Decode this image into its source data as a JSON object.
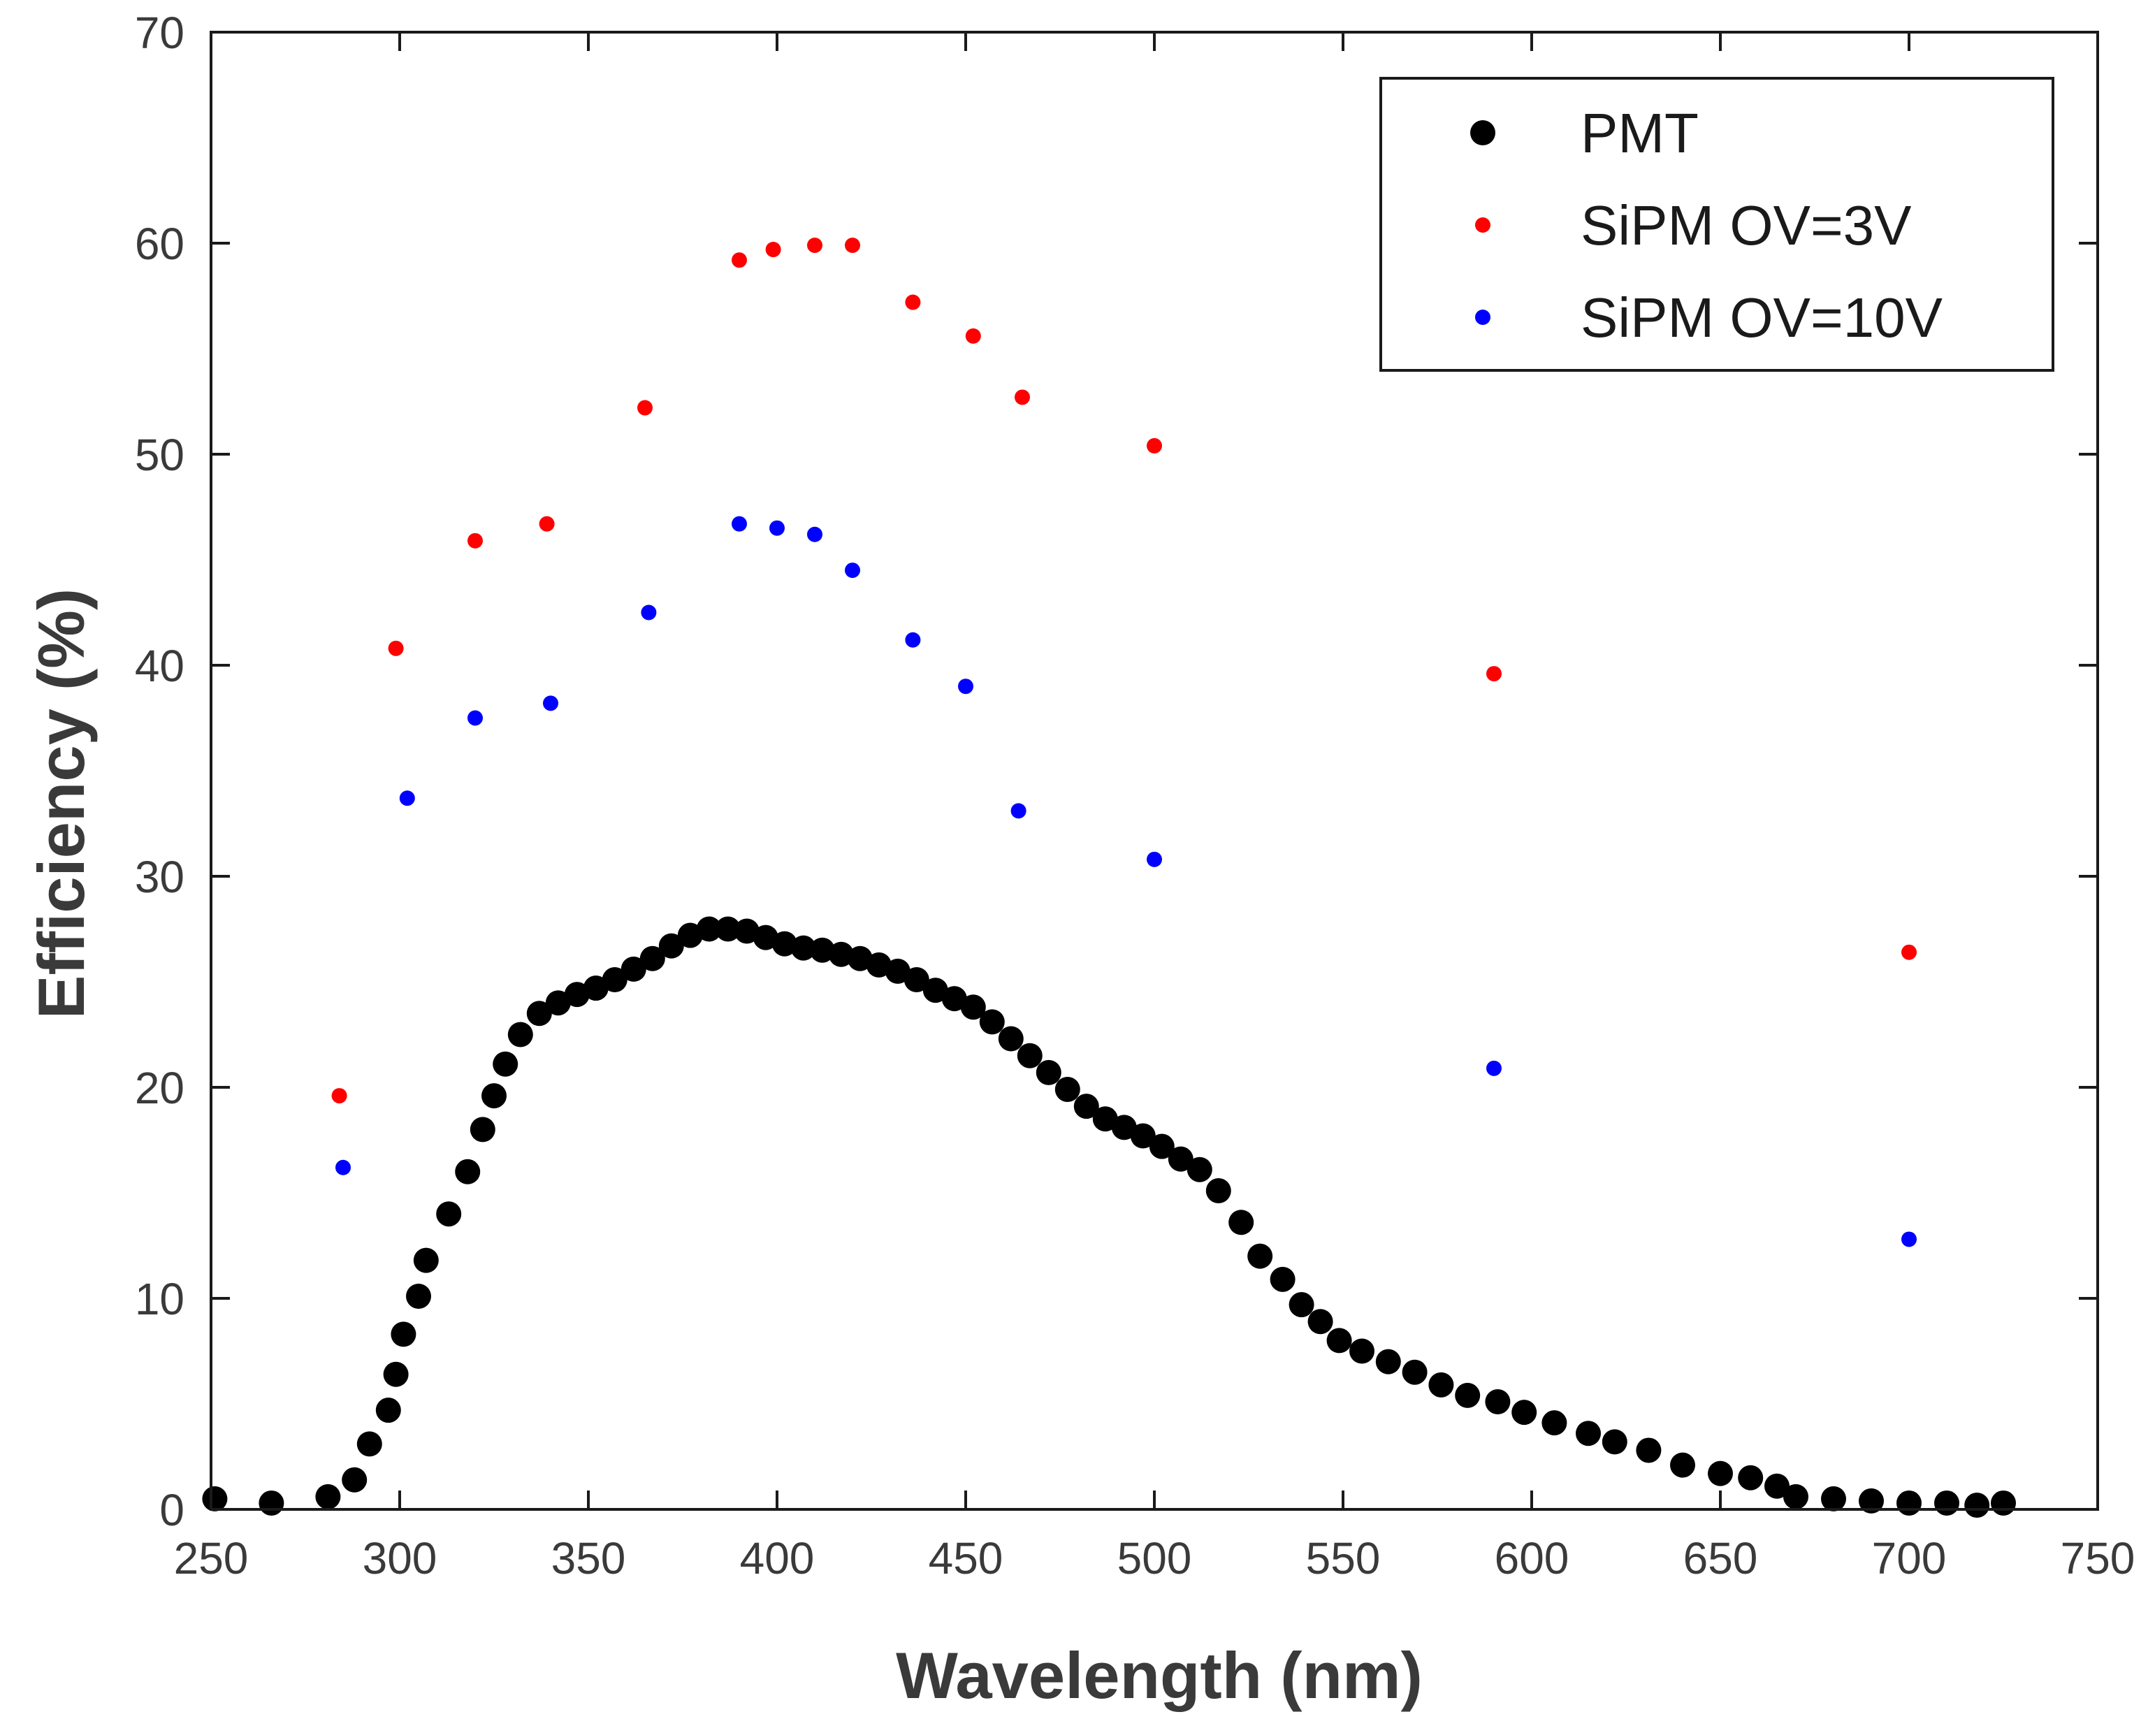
{
  "chart_data": {
    "type": "scatter",
    "title": "",
    "xlabel": "Wavelength (nm)",
    "ylabel": "Efficiency (%)",
    "xlim": [
      250,
      750
    ],
    "ylim": [
      0,
      70
    ],
    "xticks": [
      250,
      300,
      350,
      400,
      450,
      500,
      550,
      600,
      650,
      700,
      750
    ],
    "yticks": [
      0,
      10,
      20,
      30,
      40,
      50,
      60,
      70
    ],
    "xtick_labels": [
      "250",
      "300",
      "350",
      "400",
      "450",
      "500",
      "550",
      "600",
      "650",
      "700",
      "750"
    ],
    "ytick_labels": [
      "0",
      "10",
      "20",
      "30",
      "40",
      "50",
      "60",
      "70"
    ],
    "grid": false,
    "legend_position": "top-right",
    "series": [
      {
        "name": "PMT",
        "color": "#000000",
        "marker": "large-dot",
        "x": [
          251,
          266,
          281,
          288,
          292,
          297,
          299,
          301,
          305,
          307,
          313,
          318,
          322,
          325,
          328,
          332,
          337,
          342,
          347,
          352,
          357,
          362,
          367,
          372,
          377,
          382,
          387,
          392,
          397,
          402,
          407,
          412,
          417,
          422,
          427,
          432,
          437,
          442,
          447,
          452,
          457,
          462,
          467,
          472,
          477,
          482,
          487,
          492,
          497,
          502,
          507,
          512,
          517,
          523,
          528,
          534,
          539,
          544,
          549,
          555,
          562,
          569,
          576,
          583,
          591,
          598,
          606,
          615,
          622,
          631,
          640,
          650,
          658,
          665,
          670,
          680,
          690,
          700,
          710,
          718,
          725
        ],
        "y": [
          0.5,
          0.3,
          0.6,
          1.4,
          3.1,
          4.7,
          6.4,
          8.3,
          10.1,
          11.8,
          14.0,
          16.0,
          18.0,
          19.6,
          21.1,
          22.5,
          23.5,
          24.0,
          24.4,
          24.7,
          25.1,
          25.6,
          26.1,
          26.7,
          27.2,
          27.5,
          27.5,
          27.4,
          27.1,
          26.8,
          26.6,
          26.5,
          26.3,
          26.1,
          25.8,
          25.5,
          25.1,
          24.6,
          24.2,
          23.8,
          23.1,
          22.3,
          21.5,
          20.7,
          19.9,
          19.1,
          18.5,
          18.1,
          17.7,
          17.2,
          16.6,
          16.1,
          15.1,
          13.6,
          12.0,
          10.9,
          9.7,
          8.9,
          8.0,
          7.5,
          7.0,
          6.5,
          5.9,
          5.4,
          5.1,
          4.6,
          4.1,
          3.6,
          3.2,
          2.8,
          2.1,
          1.7,
          1.5,
          1.1,
          0.6,
          0.5,
          0.4,
          0.3,
          0.3,
          0.2,
          0.3
        ],
        "note": "values estimated from plot"
      },
      {
        "name": "SiPM OV=3V",
        "color": "#ff0000",
        "marker": "small-dot",
        "x": [
          284,
          299,
          320,
          339,
          365,
          390,
          399,
          410,
          420,
          436,
          452,
          465,
          500,
          590,
          700
        ],
        "y": [
          19.6,
          40.8,
          45.9,
          46.7,
          52.2,
          59.2,
          59.7,
          59.9,
          59.9,
          57.2,
          55.6,
          52.7,
          50.4,
          39.6,
          26.4
        ]
      },
      {
        "name": "SiPM OV=10V",
        "color": "#0000ff",
        "marker": "small-dot",
        "x": [
          285,
          302,
          320,
          340,
          366,
          390,
          400,
          410,
          420,
          436,
          450,
          464,
          500,
          590,
          700
        ],
        "y": [
          16.2,
          33.7,
          37.5,
          38.2,
          42.5,
          46.7,
          46.5,
          46.2,
          44.5,
          41.2,
          39.0,
          33.1,
          30.8,
          20.9,
          12.8
        ]
      }
    ]
  }
}
